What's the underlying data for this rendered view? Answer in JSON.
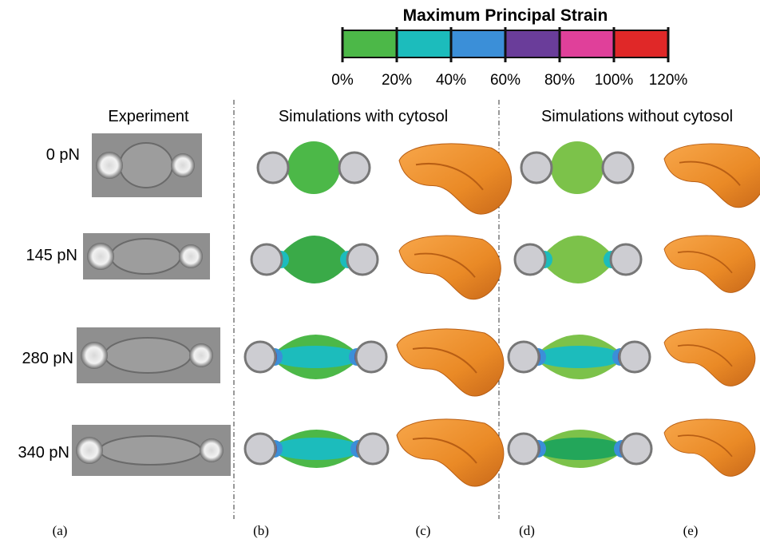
{
  "legend": {
    "title": "Maximum Principal Strain",
    "colors": [
      "#4cb848",
      "#1cbcbc",
      "#3b8fd8",
      "#6a3d9a",
      "#e0409a",
      "#e02828"
    ],
    "ticks": [
      "0%",
      "20%",
      "40%",
      "60%",
      "80%",
      "100%",
      "120%"
    ]
  },
  "columns": [
    "Experiment",
    "Simulations with cytosol",
    "Simulations without cytosol"
  ],
  "rows": [
    "0 pN",
    "145 pN",
    "280 pN",
    "340 pN"
  ],
  "panels": [
    "(a)",
    "(b)",
    "(c)",
    "(d)",
    "(e)"
  ]
}
